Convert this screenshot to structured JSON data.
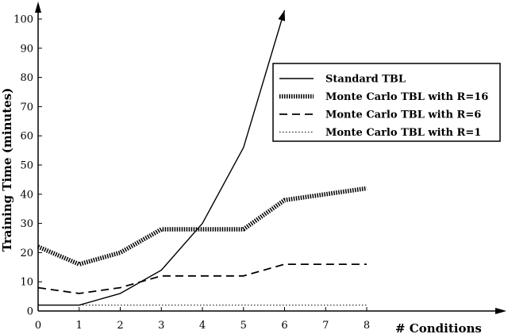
{
  "chart_data": {
    "type": "line",
    "title": "",
    "xlabel": "# Conditions",
    "ylabel": "Training Time (minutes)",
    "xlim": [
      0,
      8
    ],
    "ylim": [
      0,
      100
    ],
    "x_ticks": [
      "0",
      "1",
      "2",
      "3",
      "4",
      "5",
      "6",
      "7",
      "8"
    ],
    "y_ticks": [
      "0",
      "10",
      "20",
      "30",
      "40",
      "50",
      "60",
      "70",
      "80",
      "90",
      "100"
    ],
    "grid": false,
    "legend_position": "top-right",
    "series": [
      {
        "name": "Standard TBL",
        "style": "solid",
        "x": [
          0,
          1,
          2,
          3,
          4,
          5,
          6
        ],
        "y": [
          2,
          2,
          6,
          14,
          30,
          56,
          103
        ]
      },
      {
        "name": "Monte Carlo TBL with R=16",
        "style": "heavy-dotted",
        "x": [
          0,
          1,
          2,
          3,
          4,
          5,
          6,
          7,
          8
        ],
        "y": [
          22,
          16,
          20,
          28,
          28,
          28,
          38,
          40,
          42
        ]
      },
      {
        "name": "Monte Carlo TBL with R=6",
        "style": "dashed",
        "x": [
          0,
          1,
          2,
          3,
          4,
          5,
          6,
          7,
          8
        ],
        "y": [
          8,
          6,
          8,
          12,
          12,
          12,
          16,
          16,
          16
        ]
      },
      {
        "name": "Monte Carlo TBL with R=1",
        "style": "dotted",
        "x": [
          0,
          1,
          2,
          3,
          4,
          5,
          6,
          7,
          8
        ],
        "y": [
          2,
          2,
          2,
          2,
          2,
          2,
          2,
          2,
          2
        ]
      }
    ]
  }
}
